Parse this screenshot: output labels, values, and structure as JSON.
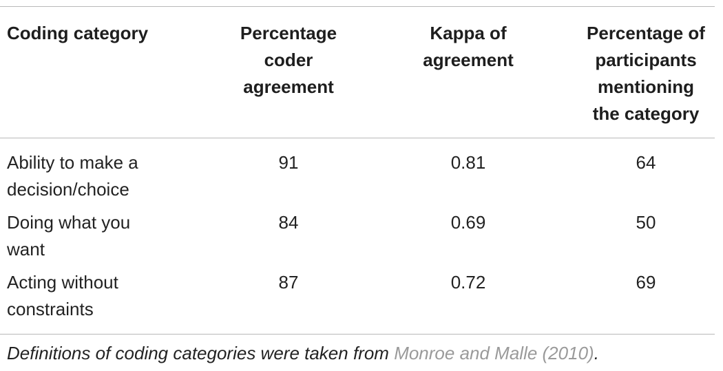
{
  "table": {
    "headers": [
      "Coding category",
      "Percentage coder agreement",
      "Kappa of agreement",
      "Percentage of participants mentioning the category"
    ],
    "header_lines": {
      "col1": [
        "Coding category"
      ],
      "col2": [
        "Percentage",
        "coder",
        "agreement"
      ],
      "col3": [
        "Kappa of",
        "agreement"
      ],
      "col4": [
        "Percentage of",
        "participants",
        "mentioning",
        "the category"
      ]
    },
    "rows": [
      {
        "category": "Ability to make a decision/choice",
        "category_lines": [
          "Ability to make a",
          "decision/choice"
        ],
        "coder_agreement": "91",
        "kappa": "0.81",
        "participants": "64"
      },
      {
        "category": "Doing what you want",
        "category_lines": [
          "Doing what you",
          "want"
        ],
        "coder_agreement": "84",
        "kappa": "0.69",
        "participants": "50"
      },
      {
        "category": "Acting without constraints",
        "category_lines": [
          "Acting without",
          "constraints"
        ],
        "coder_agreement": "87",
        "kappa": "0.72",
        "participants": "69"
      }
    ]
  },
  "footnote": {
    "text": "Definitions of coding categories were taken from ",
    "citation": "Monroe and Malle (2010)",
    "end": "."
  }
}
